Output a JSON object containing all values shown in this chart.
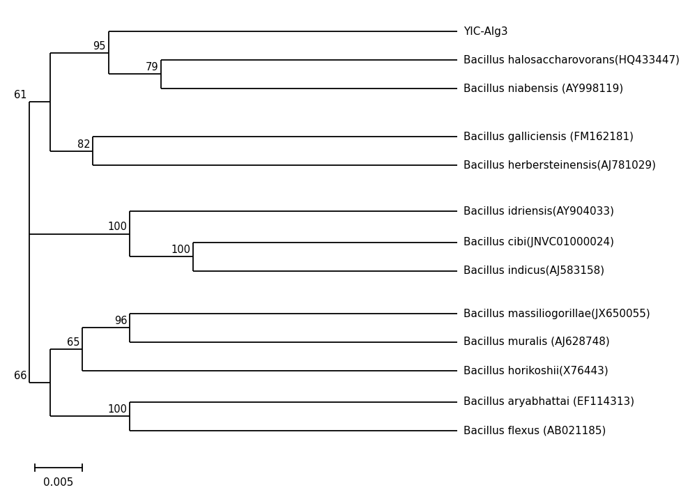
{
  "taxa_labels": {
    "YIC": "YIC-Alg3",
    "halosacch": "Bacillus halosaccharovorans(HQ433447)",
    "niabensis": "Bacillus niabensis (AY998119)",
    "galliciensis": "Bacillus galliciensis (FM162181)",
    "herbersteinensis": "Bacillus herbersteinensis(AJ781029)",
    "idriensis": "Bacillus idriensis(AY904033)",
    "cibi": "Bacillus cibi(JNVC01000024)",
    "indicus": "Bacillus indicus(AJ583158)",
    "massiliogorillae": "Bacillus massiliogorillae(JX650055)",
    "muralis": "Bacillus muralis (AJ628748)",
    "horikoshii": "Bacillus horikoshii(X76443)",
    "aryabhattai": "Bacillus aryabhattai (EF114313)",
    "flexus": "Bacillus flexus (AB021185)"
  },
  "scale_bar_label": "0.005",
  "line_color": "#000000",
  "text_color": "#000000",
  "background_color": "#ffffff",
  "font_size_taxa": 11,
  "font_size_bootstrap": 10.5
}
